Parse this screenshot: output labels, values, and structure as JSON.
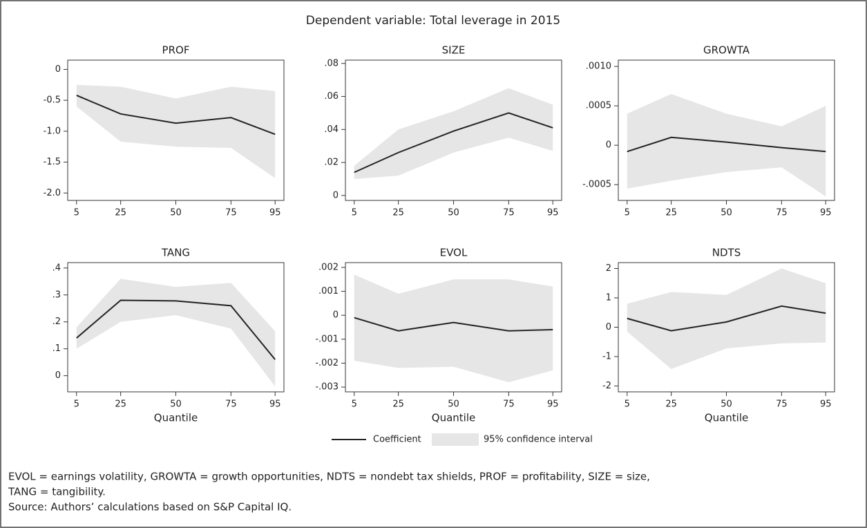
{
  "title": "Dependent variable: Total leverage in 2015",
  "chart_data": [
    {
      "type": "line",
      "title": "PROF",
      "x": [
        5,
        25,
        50,
        75,
        95
      ],
      "xlim": [
        1,
        99
      ],
      "xticks": [
        5,
        25,
        50,
        75,
        95
      ],
      "ylim": [
        -2.12,
        0.15
      ],
      "yticks": [
        0,
        -0.5,
        {
          "value": -1,
          "label": "-1.0"
        },
        -1.5,
        {
          "value": -2,
          "label": "-2.0"
        }
      ],
      "series": [
        {
          "name": "Coefficient",
          "color": "#222222",
          "values": [
            -0.42,
            -0.72,
            -0.87,
            -0.78,
            -1.05
          ]
        },
        {
          "name": "95% confidence interval",
          "color": "#e6e6e6",
          "upper": [
            -0.25,
            -0.28,
            -0.47,
            -0.28,
            -0.35
          ],
          "lower": [
            -0.6,
            -1.17,
            -1.25,
            -1.27,
            -1.76
          ]
        }
      ]
    },
    {
      "type": "line",
      "title": "SIZE",
      "x": [
        5,
        25,
        50,
        75,
        95
      ],
      "xlim": [
        1,
        99
      ],
      "xticks": [
        5,
        25,
        50,
        75,
        95
      ],
      "ylim": [
        -0.003,
        0.082
      ],
      "yticks": [
        0,
        {
          "value": 0.02,
          "label": ".02"
        },
        {
          "value": 0.04,
          "label": ".04"
        },
        {
          "value": 0.06,
          "label": ".06"
        },
        {
          "value": 0.08,
          "label": ".08"
        }
      ],
      "series": [
        {
          "name": "Coefficient",
          "color": "#222222",
          "values": [
            0.014,
            0.026,
            0.039,
            0.05,
            0.041
          ]
        },
        {
          "name": "95% confidence interval",
          "color": "#e6e6e6",
          "upper": [
            0.018,
            0.04,
            0.051,
            0.065,
            0.055
          ],
          "lower": [
            0.01,
            0.012,
            0.026,
            0.035,
            0.027
          ]
        }
      ]
    },
    {
      "type": "line",
      "title": "GROWTA",
      "x": [
        5,
        25,
        50,
        75,
        95
      ],
      "xlim": [
        1,
        99
      ],
      "xticks": [
        5,
        25,
        50,
        75,
        95
      ],
      "ylim": [
        -0.0007,
        0.00108
      ],
      "yticks": [
        {
          "value": -0.0005,
          "label": "-.0005"
        },
        0,
        {
          "value": 0.0005,
          "label": ".0005"
        },
        {
          "value": 0.001,
          "label": ".0010"
        }
      ],
      "series": [
        {
          "name": "Coefficient",
          "color": "#222222",
          "values": [
            -8e-05,
            0.0001,
            4e-05,
            -3e-05,
            -8e-05
          ]
        },
        {
          "name": "95% confidence interval",
          "color": "#e6e6e6",
          "upper": [
            0.0004,
            0.00065,
            0.0004,
            0.00024,
            0.0005
          ],
          "lower": [
            -0.00055,
            -0.00045,
            -0.00034,
            -0.00028,
            -0.00065
          ]
        }
      ]
    },
    {
      "type": "line",
      "title": "TANG",
      "xlabel": "Quantile",
      "x": [
        5,
        25,
        50,
        75,
        95
      ],
      "xlim": [
        1,
        99
      ],
      "xticks": [
        5,
        25,
        50,
        75,
        95
      ],
      "ylim": [
        -0.06,
        0.42
      ],
      "yticks": [
        0,
        {
          "value": 0.1,
          "label": ".1"
        },
        {
          "value": 0.2,
          "label": ".2"
        },
        {
          "value": 0.3,
          "label": ".3"
        },
        {
          "value": 0.4,
          "label": ".4"
        }
      ],
      "series": [
        {
          "name": "Coefficient",
          "color": "#222222",
          "values": [
            0.14,
            0.28,
            0.278,
            0.26,
            0.06
          ]
        },
        {
          "name": "95% confidence interval",
          "color": "#e6e6e6",
          "upper": [
            0.18,
            0.36,
            0.33,
            0.345,
            0.165
          ],
          "lower": [
            0.1,
            0.2,
            0.225,
            0.175,
            -0.04
          ]
        }
      ]
    },
    {
      "type": "line",
      "title": "EVOL",
      "xlabel": "Quantile",
      "x": [
        5,
        25,
        50,
        75,
        95
      ],
      "xlim": [
        1,
        99
      ],
      "xticks": [
        5,
        25,
        50,
        75,
        95
      ],
      "ylim": [
        -0.0032,
        0.0022
      ],
      "yticks": [
        {
          "value": -0.003,
          "label": "-.003"
        },
        {
          "value": -0.002,
          "label": "-.002"
        },
        {
          "value": -0.001,
          "label": "-.001"
        },
        0,
        {
          "value": 0.001,
          "label": ".001"
        },
        {
          "value": 0.002,
          "label": ".002"
        }
      ],
      "series": [
        {
          "name": "Coefficient",
          "color": "#222222",
          "values": [
            -0.0001,
            -0.00065,
            -0.0003,
            -0.00065,
            -0.0006
          ]
        },
        {
          "name": "95% confidence interval",
          "color": "#e6e6e6",
          "upper": [
            0.0017,
            0.0009,
            0.0015,
            0.0015,
            0.0012
          ],
          "lower": [
            -0.0019,
            -0.0022,
            -0.00215,
            -0.0028,
            -0.0023
          ]
        }
      ]
    },
    {
      "type": "line",
      "title": "NDTS",
      "xlabel": "Quantile",
      "x": [
        5,
        25,
        50,
        75,
        95
      ],
      "xlim": [
        1,
        99
      ],
      "xticks": [
        5,
        25,
        50,
        75,
        95
      ],
      "ylim": [
        -2.2,
        2.2
      ],
      "yticks": [
        -2,
        -1,
        0,
        1,
        2
      ],
      "series": [
        {
          "name": "Coefficient",
          "color": "#222222",
          "values": [
            0.3,
            -0.12,
            0.18,
            0.72,
            0.48
          ]
        },
        {
          "name": "95% confidence interval",
          "color": "#e6e6e6",
          "upper": [
            0.8,
            1.2,
            1.1,
            2.0,
            1.5
          ],
          "lower": [
            -0.15,
            -1.42,
            -0.72,
            -0.55,
            -0.52
          ]
        }
      ]
    }
  ],
  "notes": [
    "EVOL = earnings volatility, GROWTA = growth opportunities, NDTS = nondebt tax shields, PROF = profitability, SIZE = size,",
    "TANG = tangibility.",
    "Source: Authors’ calculations based on S&P Capital IQ."
  ]
}
